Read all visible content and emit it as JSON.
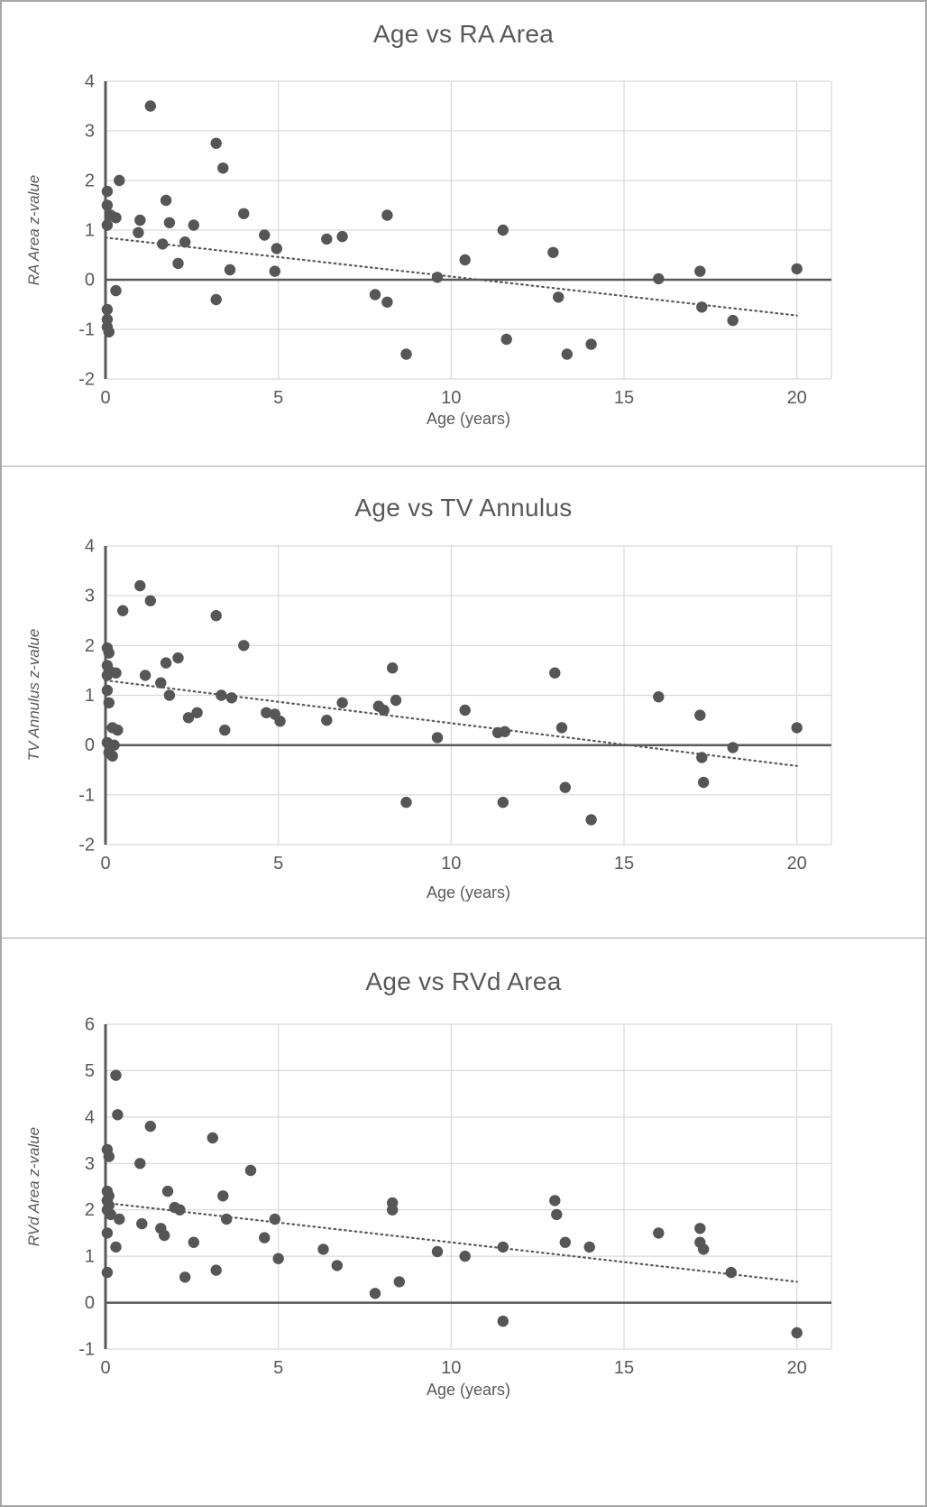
{
  "colors": {
    "title_text": "#595959",
    "axis_text": "#595959",
    "grid": "#d9d9d9",
    "dot": "#565656",
    "trend": "#595959",
    "axis": "#595959",
    "panel_border": "#a6a6a6",
    "background": "#ffffff"
  },
  "chart_data": [
    {
      "type": "scatter",
      "title": "Age vs RA Area",
      "xlabel": "Age  (years)",
      "ylabel": "RA Area z-value",
      "xlim": [
        0,
        21
      ],
      "ylim": [
        -2,
        4
      ],
      "xticks": [
        0,
        5,
        10,
        15,
        20
      ],
      "yticks": [
        -2,
        -1,
        0,
        1,
        2,
        3,
        4
      ],
      "grid": true,
      "legend": "none",
      "zero_line": true,
      "trendline": {
        "x": [
          0,
          20
        ],
        "y": [
          0.85,
          -0.72
        ]
      },
      "points": [
        [
          0.05,
          1.78
        ],
        [
          0.4,
          2.0
        ],
        [
          0.05,
          1.5
        ],
        [
          0.15,
          1.3
        ],
        [
          0.3,
          1.25
        ],
        [
          0.05,
          1.1
        ],
        [
          1.0,
          1.2
        ],
        [
          0.95,
          0.95
        ],
        [
          0.3,
          -0.22
        ],
        [
          0.05,
          -0.6
        ],
        [
          0.05,
          -0.8
        ],
        [
          0.05,
          -0.95
        ],
        [
          0.1,
          -1.05
        ],
        [
          1.3,
          3.5
        ],
        [
          1.65,
          0.72
        ],
        [
          1.75,
          1.6
        ],
        [
          1.85,
          1.15
        ],
        [
          2.1,
          0.33
        ],
        [
          2.3,
          0.76
        ],
        [
          2.55,
          1.1
        ],
        [
          3.2,
          2.75
        ],
        [
          3.4,
          2.25
        ],
        [
          3.2,
          -0.4
        ],
        [
          3.6,
          0.2
        ],
        [
          4.0,
          1.33
        ],
        [
          4.6,
          0.9
        ],
        [
          4.95,
          0.63
        ],
        [
          4.9,
          0.17
        ],
        [
          6.4,
          0.82
        ],
        [
          6.85,
          0.87
        ],
        [
          7.8,
          -0.3
        ],
        [
          8.15,
          -0.45
        ],
        [
          8.15,
          1.3
        ],
        [
          8.7,
          -1.5
        ],
        [
          9.6,
          0.05
        ],
        [
          10.4,
          0.4
        ],
        [
          11.5,
          1.0
        ],
        [
          11.6,
          -1.2
        ],
        [
          12.95,
          0.55
        ],
        [
          13.1,
          -0.35
        ],
        [
          13.35,
          -1.5
        ],
        [
          14.05,
          -1.3
        ],
        [
          16.0,
          0.02
        ],
        [
          17.2,
          0.17
        ],
        [
          17.25,
          -0.55
        ],
        [
          18.15,
          -0.82
        ],
        [
          20.0,
          0.22
        ]
      ]
    },
    {
      "type": "scatter",
      "title": "Age vs TV Annulus",
      "xlabel": "Age  (years)",
      "ylabel": "TV Annulus z-value",
      "xlim": [
        0,
        21
      ],
      "ylim": [
        -2,
        4
      ],
      "xticks": [
        0,
        5,
        10,
        15,
        20
      ],
      "yticks": [
        -2,
        -1,
        0,
        1,
        2,
        3,
        4
      ],
      "grid": true,
      "legend": "none",
      "zero_line": true,
      "trendline": {
        "x": [
          0,
          20
        ],
        "y": [
          1.3,
          -0.42
        ]
      },
      "points": [
        [
          0.05,
          1.95
        ],
        [
          0.1,
          1.85
        ],
        [
          0.05,
          1.6
        ],
        [
          0.1,
          1.5
        ],
        [
          0.3,
          1.45
        ],
        [
          0.05,
          1.4
        ],
        [
          0.05,
          1.1
        ],
        [
          0.1,
          0.85
        ],
        [
          0.2,
          0.35
        ],
        [
          0.35,
          0.3
        ],
        [
          0.05,
          0.05
        ],
        [
          0.25,
          0.0
        ],
        [
          0.1,
          -0.15
        ],
        [
          0.2,
          -0.22
        ],
        [
          0.5,
          2.7
        ],
        [
          1.0,
          3.2
        ],
        [
          1.3,
          2.9
        ],
        [
          1.15,
          1.4
        ],
        [
          1.6,
          1.25
        ],
        [
          1.75,
          1.65
        ],
        [
          1.85,
          1.0
        ],
        [
          2.1,
          1.75
        ],
        [
          2.4,
          0.55
        ],
        [
          2.65,
          0.65
        ],
        [
          3.2,
          2.6
        ],
        [
          3.35,
          1.0
        ],
        [
          3.45,
          0.3
        ],
        [
          3.65,
          0.95
        ],
        [
          4.0,
          2.0
        ],
        [
          4.65,
          0.65
        ],
        [
          4.9,
          0.62
        ],
        [
          5.05,
          0.48
        ],
        [
          6.4,
          0.5
        ],
        [
          6.85,
          0.85
        ],
        [
          7.9,
          0.78
        ],
        [
          8.05,
          0.7
        ],
        [
          8.3,
          1.55
        ],
        [
          8.4,
          0.9
        ],
        [
          8.7,
          -1.15
        ],
        [
          9.6,
          0.15
        ],
        [
          10.4,
          0.7
        ],
        [
          11.35,
          0.25
        ],
        [
          11.55,
          0.27
        ],
        [
          11.5,
          -1.15
        ],
        [
          13.0,
          1.45
        ],
        [
          13.2,
          0.35
        ],
        [
          13.3,
          -0.85
        ],
        [
          14.05,
          -1.5
        ],
        [
          16.0,
          0.97
        ],
        [
          17.2,
          0.6
        ],
        [
          17.25,
          -0.25
        ],
        [
          17.3,
          -0.75
        ],
        [
          18.15,
          -0.05
        ],
        [
          20.0,
          0.35
        ]
      ]
    },
    {
      "type": "scatter",
      "title": "Age vs RVd Area",
      "xlabel": "Age  (years)",
      "ylabel": "RVd Area z-value",
      "xlim": [
        0,
        21
      ],
      "ylim": [
        -1,
        6
      ],
      "xticks": [
        0,
        5,
        10,
        15,
        20
      ],
      "yticks": [
        -1,
        0,
        1,
        2,
        3,
        4,
        5,
        6
      ],
      "grid": true,
      "legend": "none",
      "zero_line": true,
      "trendline": {
        "x": [
          0,
          20
        ],
        "y": [
          2.15,
          0.45
        ]
      },
      "points": [
        [
          0.05,
          3.3
        ],
        [
          0.1,
          3.15
        ],
        [
          0.3,
          4.9
        ],
        [
          0.35,
          4.05
        ],
        [
          0.05,
          2.4
        ],
        [
          0.1,
          2.3
        ],
        [
          0.05,
          2.2
        ],
        [
          0.1,
          2.1
        ],
        [
          0.05,
          2.0
        ],
        [
          0.15,
          1.9
        ],
        [
          0.05,
          1.5
        ],
        [
          0.3,
          1.2
        ],
        [
          0.05,
          0.65
        ],
        [
          0.4,
          1.8
        ],
        [
          1.0,
          3.0
        ],
        [
          1.05,
          1.7
        ],
        [
          1.3,
          3.8
        ],
        [
          1.6,
          1.6
        ],
        [
          1.7,
          1.45
        ],
        [
          1.8,
          2.4
        ],
        [
          2.0,
          2.05
        ],
        [
          2.15,
          2.0
        ],
        [
          2.3,
          0.55
        ],
        [
          2.55,
          1.3
        ],
        [
          3.1,
          3.55
        ],
        [
          3.2,
          0.7
        ],
        [
          3.4,
          2.3
        ],
        [
          3.5,
          1.8
        ],
        [
          4.2,
          2.85
        ],
        [
          4.6,
          1.4
        ],
        [
          4.9,
          1.8
        ],
        [
          5.0,
          0.95
        ],
        [
          6.3,
          1.15
        ],
        [
          6.7,
          0.8
        ],
        [
          7.8,
          0.2
        ],
        [
          8.3,
          2.15
        ],
        [
          8.3,
          2.0
        ],
        [
          8.5,
          0.45
        ],
        [
          9.6,
          1.1
        ],
        [
          10.4,
          1.0
        ],
        [
          11.5,
          1.2
        ],
        [
          11.5,
          -0.4
        ],
        [
          13.0,
          2.2
        ],
        [
          13.05,
          1.9
        ],
        [
          13.3,
          1.3
        ],
        [
          14.0,
          1.2
        ],
        [
          16.0,
          1.5
        ],
        [
          17.2,
          1.6
        ],
        [
          17.2,
          1.3
        ],
        [
          17.3,
          1.15
        ],
        [
          18.1,
          0.65
        ],
        [
          20.0,
          -0.65
        ]
      ]
    }
  ]
}
